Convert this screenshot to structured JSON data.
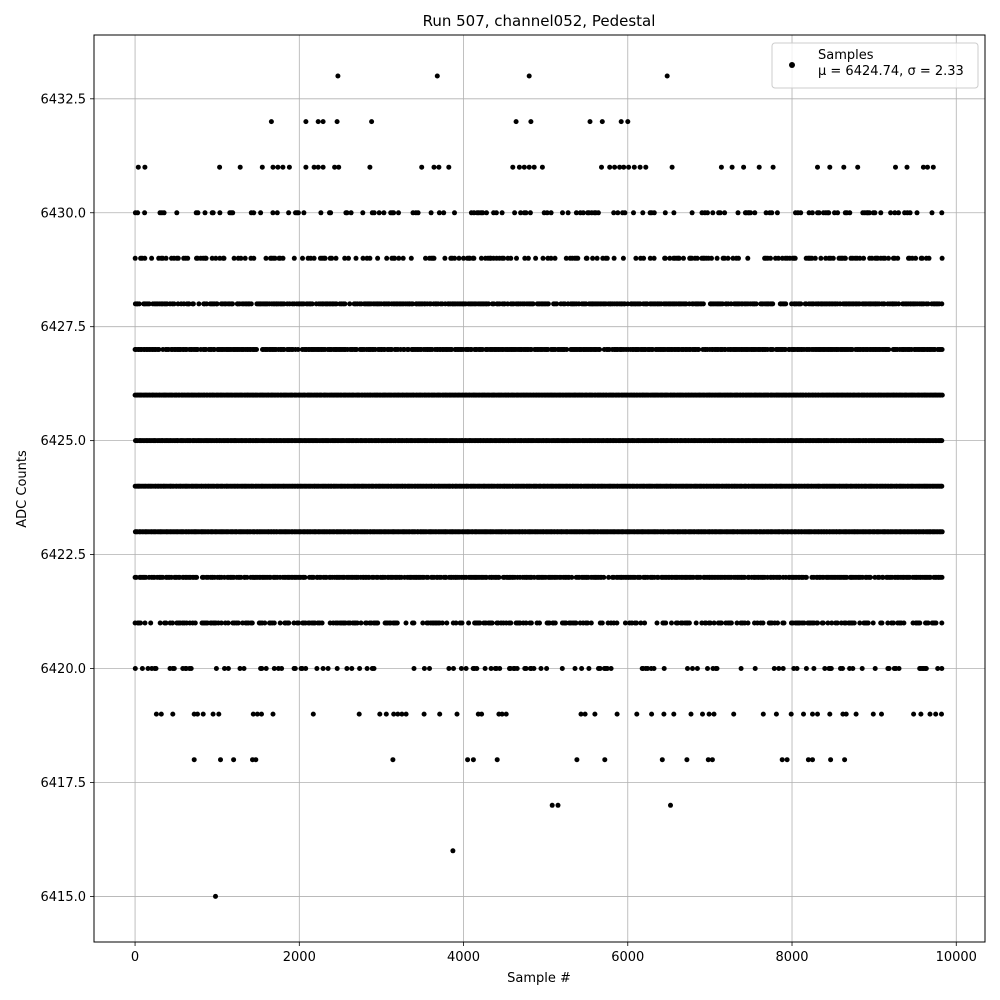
{
  "chart_data": {
    "type": "scatter",
    "title": "Run 507, channel052, Pedestal",
    "xlabel": "Sample #",
    "ylabel": "ADC Counts",
    "xlim": [
      -500,
      10350
    ],
    "ylim": [
      6414,
      6433.9
    ],
    "x_ticks": [
      0,
      2000,
      4000,
      6000,
      8000,
      10000
    ],
    "x_tick_labels": [
      "0",
      "2000",
      "4000",
      "6000",
      "8000",
      "10000"
    ],
    "y_ticks": [
      6415.0,
      6417.5,
      6420.0,
      6422.5,
      6425.0,
      6427.5,
      6430.0,
      6432.5
    ],
    "y_tick_labels": [
      "6415.0",
      "6417.5",
      "6420.0",
      "6422.5",
      "6425.0",
      "6427.5",
      "6430.0",
      "6432.5"
    ],
    "grid": true,
    "legend": {
      "placement": "top-right",
      "series_label": "Samples",
      "stats_label": "μ = 6424.74, σ = 2.33"
    },
    "marker_color": "#000000",
    "series": [
      {
        "name": "Samples",
        "mean": 6424.74,
        "sigma": 2.33,
        "n_samples": 9800,
        "levels": [
          {
            "y": 6422,
            "x_range": [
              0,
              9830
            ],
            "density": 0.85
          },
          {
            "y": 6423,
            "x_range": [
              0,
              9830
            ],
            "density": 1.0
          },
          {
            "y": 6424,
            "x_range": [
              0,
              9830
            ],
            "density": 1.0
          },
          {
            "y": 6425,
            "x_range": [
              0,
              9830
            ],
            "density": 1.0
          },
          {
            "y": 6426,
            "x_range": [
              0,
              9830
            ],
            "density": 1.0
          },
          {
            "y": 6427,
            "x_range": [
              0,
              9830
            ],
            "density": 0.9
          },
          {
            "y": 6428,
            "x_range": [
              0,
              9830
            ],
            "density": 0.75
          },
          {
            "y": 6421,
            "x_range": [
              0,
              9830
            ],
            "density": 0.5
          },
          {
            "y": 6429,
            "x_range": [
              0,
              9830
            ],
            "density": 0.35
          },
          {
            "y": 6430,
            "x_range": [
              0,
              9830
            ],
            "density": 0.22
          },
          {
            "y": 6420,
            "x_range": [
              0,
              9830
            ],
            "density": 0.22
          }
        ],
        "points": [
          {
            "x": 40,
            "y": 6431
          },
          {
            "x": 120,
            "y": 6431
          },
          {
            "x": 1030,
            "y": 6431
          },
          {
            "x": 1280,
            "y": 6431
          },
          {
            "x": 1550,
            "y": 6431
          },
          {
            "x": 1680,
            "y": 6431
          },
          {
            "x": 1740,
            "y": 6431
          },
          {
            "x": 1800,
            "y": 6431
          },
          {
            "x": 1880,
            "y": 6431
          },
          {
            "x": 2080,
            "y": 6431
          },
          {
            "x": 2180,
            "y": 6431
          },
          {
            "x": 2230,
            "y": 6431
          },
          {
            "x": 2290,
            "y": 6431
          },
          {
            "x": 2430,
            "y": 6431
          },
          {
            "x": 2480,
            "y": 6431
          },
          {
            "x": 2860,
            "y": 6431
          },
          {
            "x": 3490,
            "y": 6431
          },
          {
            "x": 3640,
            "y": 6431
          },
          {
            "x": 3700,
            "y": 6431
          },
          {
            "x": 3820,
            "y": 6431
          },
          {
            "x": 4600,
            "y": 6431
          },
          {
            "x": 4680,
            "y": 6431
          },
          {
            "x": 4740,
            "y": 6431
          },
          {
            "x": 4800,
            "y": 6431
          },
          {
            "x": 4860,
            "y": 6431
          },
          {
            "x": 4960,
            "y": 6431
          },
          {
            "x": 5680,
            "y": 6431
          },
          {
            "x": 5780,
            "y": 6431
          },
          {
            "x": 5840,
            "y": 6431
          },
          {
            "x": 5900,
            "y": 6431
          },
          {
            "x": 5950,
            "y": 6431
          },
          {
            "x": 6010,
            "y": 6431
          },
          {
            "x": 6080,
            "y": 6431
          },
          {
            "x": 6150,
            "y": 6431
          },
          {
            "x": 6220,
            "y": 6431
          },
          {
            "x": 6540,
            "y": 6431
          },
          {
            "x": 7140,
            "y": 6431
          },
          {
            "x": 7270,
            "y": 6431
          },
          {
            "x": 7410,
            "y": 6431
          },
          {
            "x": 7600,
            "y": 6431
          },
          {
            "x": 7770,
            "y": 6431
          },
          {
            "x": 8310,
            "y": 6431
          },
          {
            "x": 8460,
            "y": 6431
          },
          {
            "x": 8630,
            "y": 6431
          },
          {
            "x": 8800,
            "y": 6431
          },
          {
            "x": 9260,
            "y": 6431
          },
          {
            "x": 9400,
            "y": 6431
          },
          {
            "x": 9600,
            "y": 6431
          },
          {
            "x": 9650,
            "y": 6431
          },
          {
            "x": 9720,
            "y": 6431
          },
          {
            "x": 1660,
            "y": 6432
          },
          {
            "x": 2080,
            "y": 6432
          },
          {
            "x": 2230,
            "y": 6432
          },
          {
            "x": 2290,
            "y": 6432
          },
          {
            "x": 2460,
            "y": 6432
          },
          {
            "x": 2880,
            "y": 6432
          },
          {
            "x": 4640,
            "y": 6432
          },
          {
            "x": 4820,
            "y": 6432
          },
          {
            "x": 5540,
            "y": 6432
          },
          {
            "x": 5690,
            "y": 6432
          },
          {
            "x": 5920,
            "y": 6432
          },
          {
            "x": 6000,
            "y": 6432
          },
          {
            "x": 2470,
            "y": 6433
          },
          {
            "x": 3680,
            "y": 6433
          },
          {
            "x": 4800,
            "y": 6433
          },
          {
            "x": 6480,
            "y": 6433
          },
          {
            "x": 720,
            "y": 6418
          },
          {
            "x": 1040,
            "y": 6418
          },
          {
            "x": 1200,
            "y": 6418
          },
          {
            "x": 1430,
            "y": 6418
          },
          {
            "x": 1470,
            "y": 6418
          },
          {
            "x": 3140,
            "y": 6418
          },
          {
            "x": 4050,
            "y": 6418
          },
          {
            "x": 4120,
            "y": 6418
          },
          {
            "x": 4410,
            "y": 6418
          },
          {
            "x": 5380,
            "y": 6418
          },
          {
            "x": 5720,
            "y": 6418
          },
          {
            "x": 6420,
            "y": 6418
          },
          {
            "x": 6720,
            "y": 6418
          },
          {
            "x": 6980,
            "y": 6418
          },
          {
            "x": 7030,
            "y": 6418
          },
          {
            "x": 7880,
            "y": 6418
          },
          {
            "x": 7940,
            "y": 6418
          },
          {
            "x": 8200,
            "y": 6418
          },
          {
            "x": 8250,
            "y": 6418
          },
          {
            "x": 8470,
            "y": 6418
          },
          {
            "x": 8640,
            "y": 6418
          },
          {
            "x": 5080,
            "y": 6417
          },
          {
            "x": 5150,
            "y": 6417
          },
          {
            "x": 6520,
            "y": 6417
          },
          {
            "x": 3870,
            "y": 6416
          },
          {
            "x": 980,
            "y": 6415
          },
          {
            "x": 260,
            "y": 6419
          },
          {
            "x": 320,
            "y": 6419
          },
          {
            "x": 460,
            "y": 6419
          },
          {
            "x": 720,
            "y": 6419
          },
          {
            "x": 760,
            "y": 6419
          },
          {
            "x": 830,
            "y": 6419
          },
          {
            "x": 950,
            "y": 6419
          },
          {
            "x": 1020,
            "y": 6419
          },
          {
            "x": 1440,
            "y": 6419
          },
          {
            "x": 1490,
            "y": 6419
          },
          {
            "x": 1540,
            "y": 6419
          },
          {
            "x": 1680,
            "y": 6419
          },
          {
            "x": 2170,
            "y": 6419
          },
          {
            "x": 2730,
            "y": 6419
          },
          {
            "x": 2980,
            "y": 6419
          },
          {
            "x": 3060,
            "y": 6419
          },
          {
            "x": 3150,
            "y": 6419
          },
          {
            "x": 3200,
            "y": 6419
          },
          {
            "x": 3250,
            "y": 6419
          },
          {
            "x": 3300,
            "y": 6419
          },
          {
            "x": 3520,
            "y": 6419
          },
          {
            "x": 3710,
            "y": 6419
          },
          {
            "x": 3920,
            "y": 6419
          },
          {
            "x": 4180,
            "y": 6419
          },
          {
            "x": 4220,
            "y": 6419
          },
          {
            "x": 4430,
            "y": 6419
          },
          {
            "x": 4470,
            "y": 6419
          },
          {
            "x": 4520,
            "y": 6419
          },
          {
            "x": 5430,
            "y": 6419
          },
          {
            "x": 5480,
            "y": 6419
          },
          {
            "x": 5600,
            "y": 6419
          },
          {
            "x": 5870,
            "y": 6419
          },
          {
            "x": 6110,
            "y": 6419
          },
          {
            "x": 6290,
            "y": 6419
          },
          {
            "x": 6440,
            "y": 6419
          },
          {
            "x": 6560,
            "y": 6419
          },
          {
            "x": 6770,
            "y": 6419
          },
          {
            "x": 6910,
            "y": 6419
          },
          {
            "x": 6990,
            "y": 6419
          },
          {
            "x": 7050,
            "y": 6419
          },
          {
            "x": 7290,
            "y": 6419
          },
          {
            "x": 7650,
            "y": 6419
          },
          {
            "x": 7810,
            "y": 6419
          },
          {
            "x": 7990,
            "y": 6419
          },
          {
            "x": 8140,
            "y": 6419
          },
          {
            "x": 8250,
            "y": 6419
          },
          {
            "x": 8310,
            "y": 6419
          },
          {
            "x": 8460,
            "y": 6419
          },
          {
            "x": 8620,
            "y": 6419
          },
          {
            "x": 8660,
            "y": 6419
          },
          {
            "x": 8780,
            "y": 6419
          },
          {
            "x": 8990,
            "y": 6419
          },
          {
            "x": 9090,
            "y": 6419
          },
          {
            "x": 9480,
            "y": 6419
          },
          {
            "x": 9570,
            "y": 6419
          },
          {
            "x": 9680,
            "y": 6419
          },
          {
            "x": 9750,
            "y": 6419
          },
          {
            "x": 9820,
            "y": 6419
          }
        ]
      }
    ]
  }
}
